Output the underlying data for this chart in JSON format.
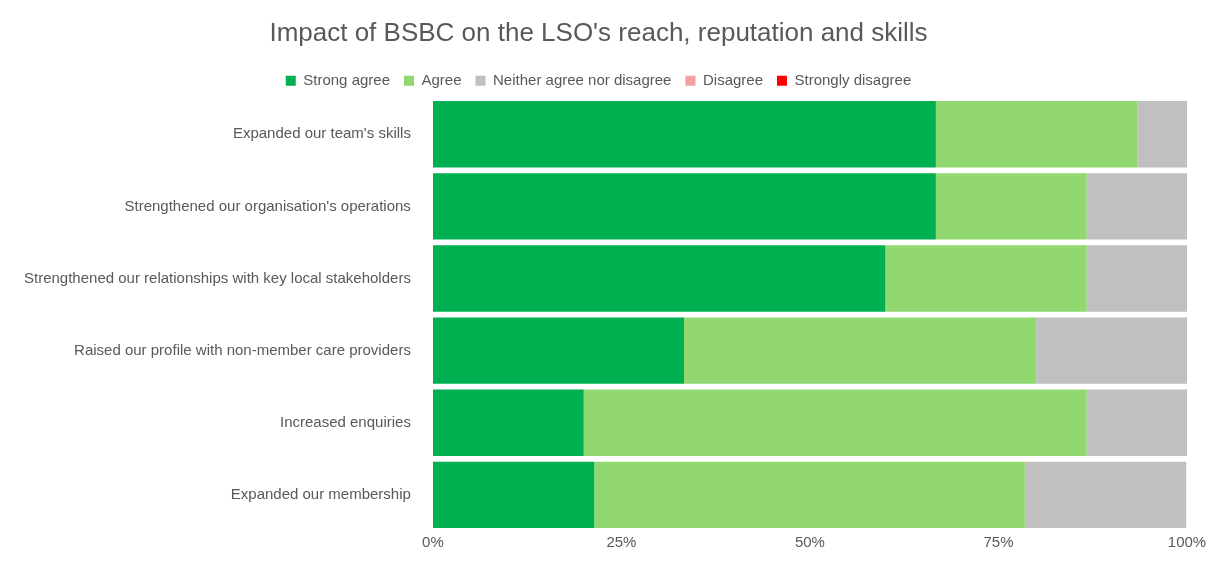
{
  "chart_data": {
    "type": "bar",
    "orientation": "horizontal",
    "stacked": true,
    "title": "Impact of BSBC on the LSO's reach, reputation and skills",
    "categories": [
      "Expanded our team's skills",
      "Strengthened our organisation's operations",
      "Strengthened our relationships with key local stakeholders",
      "Raised our profile with non-member care providers",
      "Increased enquiries",
      "Expanded our membership"
    ],
    "series": [
      {
        "name": "Strong agree",
        "color": "#00b050",
        "values": [
          66.7,
          66.7,
          60,
          33.3,
          20,
          21.4
        ]
      },
      {
        "name": "Agree",
        "color": "#92d870",
        "values": [
          26.7,
          20,
          26.7,
          46.7,
          66.7,
          57.1
        ]
      },
      {
        "name": "Neither agree nor disagree",
        "color": "#c0c0c0",
        "values": [
          6.7,
          13.3,
          13.3,
          20,
          13.3,
          21.4
        ]
      },
      {
        "name": "Disagree",
        "color": "#f4a0a0",
        "values": [
          0,
          0,
          0,
          0,
          0,
          0
        ]
      },
      {
        "name": "Strongly disagree",
        "color": "#ff0000",
        "values": [
          0,
          0,
          0,
          0,
          0,
          0
        ]
      }
    ],
    "xlim": [
      0,
      100
    ],
    "xticks": [
      {
        "value": 0,
        "label": "0%"
      },
      {
        "value": 25,
        "label": "25%"
      },
      {
        "value": 50,
        "label": "50%"
      },
      {
        "value": 75,
        "label": "75%"
      },
      {
        "value": 100,
        "label": "100%"
      }
    ],
    "grid": false,
    "legend": "top"
  }
}
